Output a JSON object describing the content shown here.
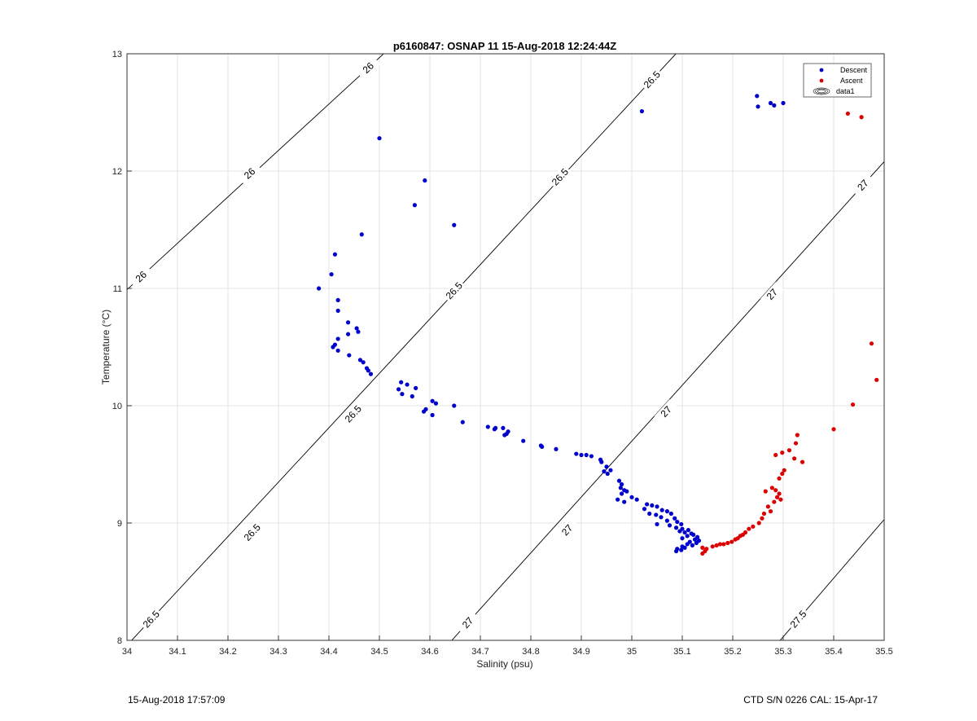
{
  "chart_data": {
    "type": "scatter",
    "title": "p6160847: OSNAP 11 15-Aug-2018 12:24:44Z",
    "xlabel": "Salinity (psu)",
    "ylabel": "Temperature (°C)",
    "xlim": [
      34,
      35.5
    ],
    "ylim": [
      8,
      13
    ],
    "xticks": [
      "34",
      "34.1",
      "34.2",
      "34.3",
      "34.4",
      "34.5",
      "34.6",
      "34.7",
      "34.8",
      "34.9",
      "35",
      "35.1",
      "35.2",
      "35.3",
      "35.4",
      "35.5"
    ],
    "yticks": [
      "8",
      "9",
      "10",
      "11",
      "12",
      "13"
    ],
    "grid": true,
    "legend": {
      "placement": "top-right",
      "entries": [
        "Descent",
        "Ascent",
        "data1"
      ]
    },
    "colors": {
      "descent": "#0000cc",
      "ascent": "#dd0000",
      "contour": "#000000"
    },
    "series": [
      {
        "name": "Descent",
        "points": [
          [
            34.38,
            11.0
          ],
          [
            34.405,
            11.12
          ],
          [
            34.412,
            11.29
          ],
          [
            34.465,
            11.46
          ],
          [
            34.5,
            12.28
          ],
          [
            34.57,
            11.71
          ],
          [
            34.59,
            11.92
          ],
          [
            34.648,
            11.54
          ],
          [
            35.02,
            12.51
          ],
          [
            35.248,
            12.64
          ],
          [
            35.25,
            12.55
          ],
          [
            35.275,
            12.58
          ],
          [
            35.282,
            12.56
          ],
          [
            35.3,
            12.58
          ],
          [
            34.418,
            10.9
          ],
          [
            34.418,
            10.81
          ],
          [
            34.438,
            10.71
          ],
          [
            34.455,
            10.66
          ],
          [
            34.458,
            10.63
          ],
          [
            34.438,
            10.61
          ],
          [
            34.418,
            10.57
          ],
          [
            34.408,
            10.5
          ],
          [
            34.412,
            10.52
          ],
          [
            34.418,
            10.47
          ],
          [
            34.44,
            10.43
          ],
          [
            34.462,
            10.39
          ],
          [
            34.468,
            10.37
          ],
          [
            34.475,
            10.32
          ],
          [
            34.478,
            10.3
          ],
          [
            34.483,
            10.27
          ],
          [
            34.543,
            10.2
          ],
          [
            34.555,
            10.18
          ],
          [
            34.538,
            10.14
          ],
          [
            34.572,
            10.15
          ],
          [
            34.545,
            10.1
          ],
          [
            34.565,
            10.08
          ],
          [
            34.605,
            10.04
          ],
          [
            34.612,
            10.02
          ],
          [
            34.648,
            10.0
          ],
          [
            34.592,
            9.97
          ],
          [
            34.588,
            9.95
          ],
          [
            34.605,
            9.92
          ],
          [
            34.665,
            9.86
          ],
          [
            34.715,
            9.82
          ],
          [
            34.73,
            9.81
          ],
          [
            34.745,
            9.81
          ],
          [
            34.728,
            9.8
          ],
          [
            34.755,
            9.78
          ],
          [
            34.752,
            9.76
          ],
          [
            34.748,
            9.75
          ],
          [
            34.785,
            9.7
          ],
          [
            34.82,
            9.66
          ],
          [
            34.822,
            9.65
          ],
          [
            34.85,
            9.63
          ],
          [
            34.89,
            9.59
          ],
          [
            34.9,
            9.58
          ],
          [
            34.91,
            9.58
          ],
          [
            34.92,
            9.57
          ],
          [
            34.938,
            9.54
          ],
          [
            34.94,
            9.52
          ],
          [
            34.95,
            9.48
          ],
          [
            34.958,
            9.45
          ],
          [
            34.945,
            9.44
          ],
          [
            34.952,
            9.42
          ],
          [
            34.975,
            9.36
          ],
          [
            34.98,
            9.33
          ],
          [
            34.978,
            9.3
          ],
          [
            34.985,
            9.28
          ],
          [
            34.99,
            9.27
          ],
          [
            34.98,
            9.25
          ],
          [
            35.0,
            9.22
          ],
          [
            34.972,
            9.2
          ],
          [
            34.985,
            9.18
          ],
          [
            35.01,
            9.2
          ],
          [
            35.03,
            9.16
          ],
          [
            35.04,
            9.15
          ],
          [
            35.05,
            9.14
          ],
          [
            35.025,
            9.12
          ],
          [
            35.06,
            9.11
          ],
          [
            35.07,
            9.1
          ],
          [
            35.035,
            9.08
          ],
          [
            35.048,
            9.07
          ],
          [
            35.078,
            9.08
          ],
          [
            35.058,
            9.05
          ],
          [
            35.085,
            9.04
          ],
          [
            35.07,
            9.02
          ],
          [
            35.09,
            9.01
          ],
          [
            35.098,
            8.99
          ],
          [
            35.05,
            8.99
          ],
          [
            35.075,
            8.98
          ],
          [
            35.088,
            8.96
          ],
          [
            35.1,
            8.95
          ],
          [
            35.112,
            8.94
          ],
          [
            35.095,
            8.93
          ],
          [
            35.105,
            8.92
          ],
          [
            35.118,
            8.91
          ],
          [
            35.122,
            8.9
          ],
          [
            35.11,
            8.89
          ],
          [
            35.13,
            8.88
          ],
          [
            35.1,
            8.87
          ],
          [
            35.125,
            8.86
          ],
          [
            35.133,
            8.85
          ],
          [
            35.115,
            8.84
          ],
          [
            35.128,
            8.83
          ],
          [
            35.11,
            8.82
          ],
          [
            35.12,
            8.81
          ],
          [
            35.1,
            8.8
          ],
          [
            35.105,
            8.79
          ],
          [
            35.09,
            8.78
          ],
          [
            35.098,
            8.77
          ],
          [
            35.088,
            8.76
          ]
        ]
      },
      {
        "name": "Ascent",
        "points": [
          [
            35.14,
            8.74
          ],
          [
            35.145,
            8.76
          ],
          [
            35.148,
            8.78
          ],
          [
            35.14,
            8.79
          ],
          [
            35.16,
            8.8
          ],
          [
            35.168,
            8.81
          ],
          [
            35.175,
            8.82
          ],
          [
            35.182,
            8.82
          ],
          [
            35.19,
            8.83
          ],
          [
            35.198,
            8.84
          ],
          [
            35.205,
            8.86
          ],
          [
            35.21,
            8.87
          ],
          [
            35.215,
            8.89
          ],
          [
            35.22,
            8.9
          ],
          [
            35.225,
            8.92
          ],
          [
            35.232,
            8.95
          ],
          [
            35.24,
            8.97
          ],
          [
            35.252,
            9.0
          ],
          [
            35.258,
            9.04
          ],
          [
            35.262,
            9.08
          ],
          [
            35.275,
            9.1
          ],
          [
            35.27,
            9.14
          ],
          [
            35.282,
            9.18
          ],
          [
            35.288,
            9.22
          ],
          [
            35.292,
            9.25
          ],
          [
            35.295,
            9.2
          ],
          [
            35.265,
            9.27
          ],
          [
            35.278,
            9.3
          ],
          [
            35.285,
            9.28
          ],
          [
            35.292,
            9.38
          ],
          [
            35.298,
            9.42
          ],
          [
            35.302,
            9.45
          ],
          [
            35.285,
            9.58
          ],
          [
            35.298,
            9.6
          ],
          [
            35.322,
            9.55
          ],
          [
            35.325,
            9.68
          ],
          [
            35.328,
            9.75
          ],
          [
            35.338,
            9.52
          ],
          [
            35.312,
            9.62
          ],
          [
            35.4,
            9.8
          ],
          [
            35.438,
            10.01
          ],
          [
            35.475,
            10.53
          ],
          [
            35.485,
            10.22
          ],
          [
            35.428,
            12.49
          ],
          [
            35.455,
            12.46
          ]
        ]
      }
    ],
    "contours": [
      {
        "label": "26",
        "labels_at": [
          [
            34.028,
            11.1
          ],
          [
            34.243,
            11.98
          ],
          [
            34.478,
            12.88
          ]
        ]
      },
      {
        "label": "26.5",
        "labels_at": [
          [
            34.048,
            8.18
          ],
          [
            34.248,
            8.92
          ],
          [
            34.448,
            9.93
          ],
          [
            34.648,
            10.98
          ],
          [
            34.858,
            11.95
          ],
          [
            35.04,
            12.78
          ]
        ]
      },
      {
        "label": "27",
        "labels_at": [
          [
            34.675,
            8.15
          ],
          [
            34.872,
            8.94
          ],
          [
            35.068,
            9.95
          ],
          [
            35.278,
            10.95
          ],
          [
            35.458,
            11.88
          ]
        ]
      },
      {
        "label": "27.5",
        "labels_at": [
          [
            35.33,
            8.18
          ]
        ]
      }
    ]
  },
  "footer": {
    "left": "15-Aug-2018 17:57:09",
    "right": "CTD S/N 0226  CAL: 15-Apr-17"
  }
}
